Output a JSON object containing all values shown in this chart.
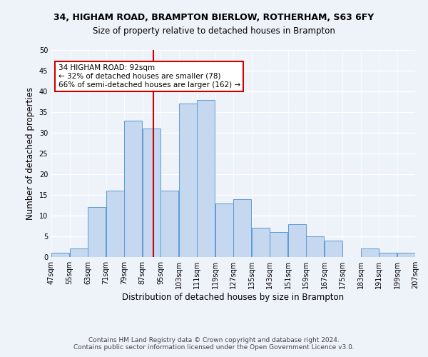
{
  "title1": "34, HIGHAM ROAD, BRAMPTON BIERLOW, ROTHERHAM, S63 6FY",
  "title2": "Size of property relative to detached houses in Brampton",
  "xlabel": "Distribution of detached houses by size in Brampton",
  "ylabel": "Number of detached properties",
  "bar_values": [
    1,
    2,
    12,
    16,
    33,
    31,
    16,
    37,
    38,
    13,
    14,
    7,
    6,
    8,
    5,
    4,
    0,
    2,
    1,
    1
  ],
  "bar_labels": [
    "47sqm",
    "55sqm",
    "63sqm",
    "71sqm",
    "79sqm",
    "87sqm",
    "95sqm",
    "103sqm",
    "111sqm",
    "119sqm",
    "127sqm",
    "135sqm",
    "143sqm",
    "151sqm",
    "159sqm",
    "167sqm",
    "175sqm",
    "183sqm",
    "191sqm",
    "199sqm",
    "207sqm"
  ],
  "bar_color": "#c5d8f0",
  "bar_edge_color": "#5b9bd5",
  "vline_x": 92,
  "vline_color": "#cc0000",
  "annotation_text": "34 HIGHAM ROAD: 92sqm\n← 32% of detached houses are smaller (78)\n66% of semi-detached houses are larger (162) →",
  "annotation_box_color": "#ffffff",
  "annotation_border_color": "#cc0000",
  "ylim": [
    0,
    50
  ],
  "yticks": [
    0,
    5,
    10,
    15,
    20,
    25,
    30,
    35,
    40,
    45,
    50
  ],
  "footer1": "Contains HM Land Registry data © Crown copyright and database right 2024.",
  "footer2": "Contains public sector information licensed under the Open Government Licence v3.0.",
  "bg_color": "#eef2f9",
  "plot_bg_color": "#eef2f9",
  "grid_color": "#ffffff"
}
